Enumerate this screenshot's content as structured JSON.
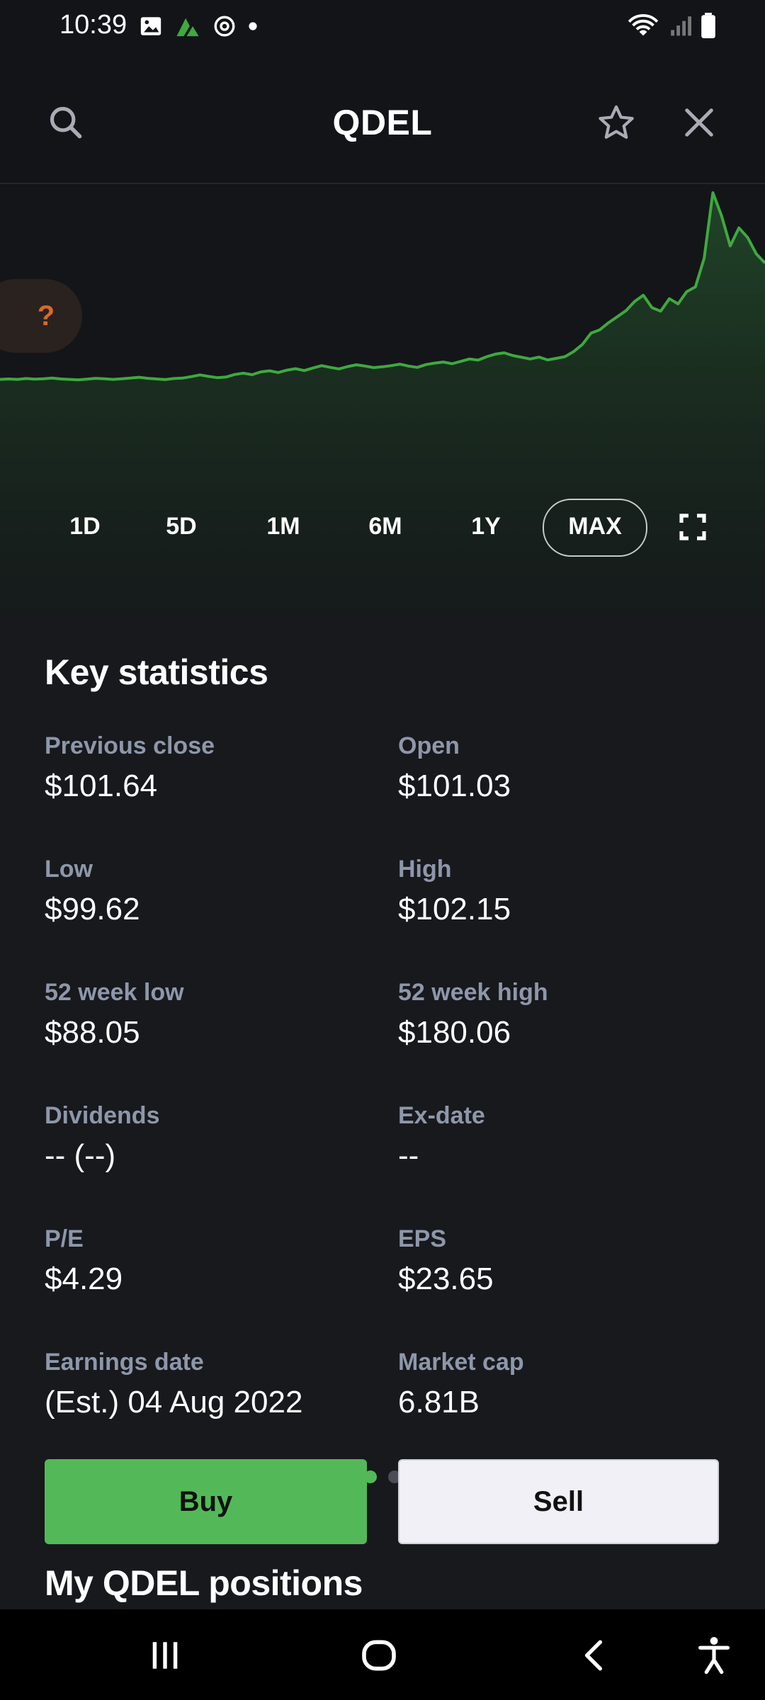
{
  "status": {
    "time": "10:39"
  },
  "header": {
    "title": "QDEL"
  },
  "chart": {
    "help_label": "?",
    "ranges": [
      "1D",
      "5D",
      "1M",
      "6M",
      "1Y",
      "MAX"
    ],
    "selected_range": "MAX",
    "accent": "#3fa93f"
  },
  "chart_data": {
    "type": "area",
    "series": [
      {
        "values": [
          12.0,
          12.2,
          12.0,
          12.4,
          12.1,
          12.3,
          12.6,
          12.2,
          12.0,
          11.8,
          12.1,
          12.5,
          12.3,
          12.0,
          12.3,
          12.6,
          13.0,
          12.5,
          12.2,
          11.9,
          12.4,
          12.6,
          13.3,
          14.1,
          13.4,
          12.8,
          13.1,
          14.3,
          14.9,
          14.2,
          15.5,
          16.0,
          15.2,
          16.3,
          17.0,
          16.1,
          17.3,
          18.4,
          17.6,
          16.9,
          18.0,
          18.8,
          18.2,
          17.5,
          17.9,
          18.4,
          19.1,
          18.2,
          17.6,
          18.9,
          19.6,
          20.1,
          19.3,
          20.4,
          21.5,
          21.0,
          22.6,
          23.8,
          24.4,
          23.1,
          22.3,
          21.5,
          22.4,
          21.1,
          21.8,
          22.6,
          25.0,
          28.3,
          33.6,
          35.1,
          38.4,
          41.2,
          44.0,
          48.3,
          51.2,
          45.4,
          43.8,
          49.6,
          47.2,
          52.9,
          55.1,
          68.4,
          99.0,
          88.3,
          74.2,
          82.6,
          78.1,
          70.5,
          66.2
        ]
      }
    ]
  },
  "stats": {
    "title": "Key statistics",
    "items": [
      {
        "label": "Previous close",
        "value": "$101.64"
      },
      {
        "label": "Open",
        "value": "$101.03"
      },
      {
        "label": "Low",
        "value": "$99.62"
      },
      {
        "label": "High",
        "value": "$102.15"
      },
      {
        "label": "52 week low",
        "value": "$88.05"
      },
      {
        "label": "52 week high",
        "value": "$180.06"
      },
      {
        "label": "Dividends",
        "value": "-- (--)"
      },
      {
        "label": "Ex-date",
        "value": "--"
      },
      {
        "label": "P/E",
        "value": "$4.29"
      },
      {
        "label": "EPS",
        "value": "$23.65"
      },
      {
        "label": "Earnings date",
        "value": "(Est.) 04 Aug 2022"
      },
      {
        "label": "Market cap",
        "value": "6.81B"
      }
    ]
  },
  "actions": {
    "buy": "Buy",
    "sell": "Sell"
  },
  "positions": {
    "title": "My QDEL positions"
  },
  "icons": [
    "search-icon",
    "star-icon",
    "close-icon",
    "expand-icon",
    "recents-icon",
    "home-icon",
    "back-icon",
    "accessibility-icon"
  ]
}
